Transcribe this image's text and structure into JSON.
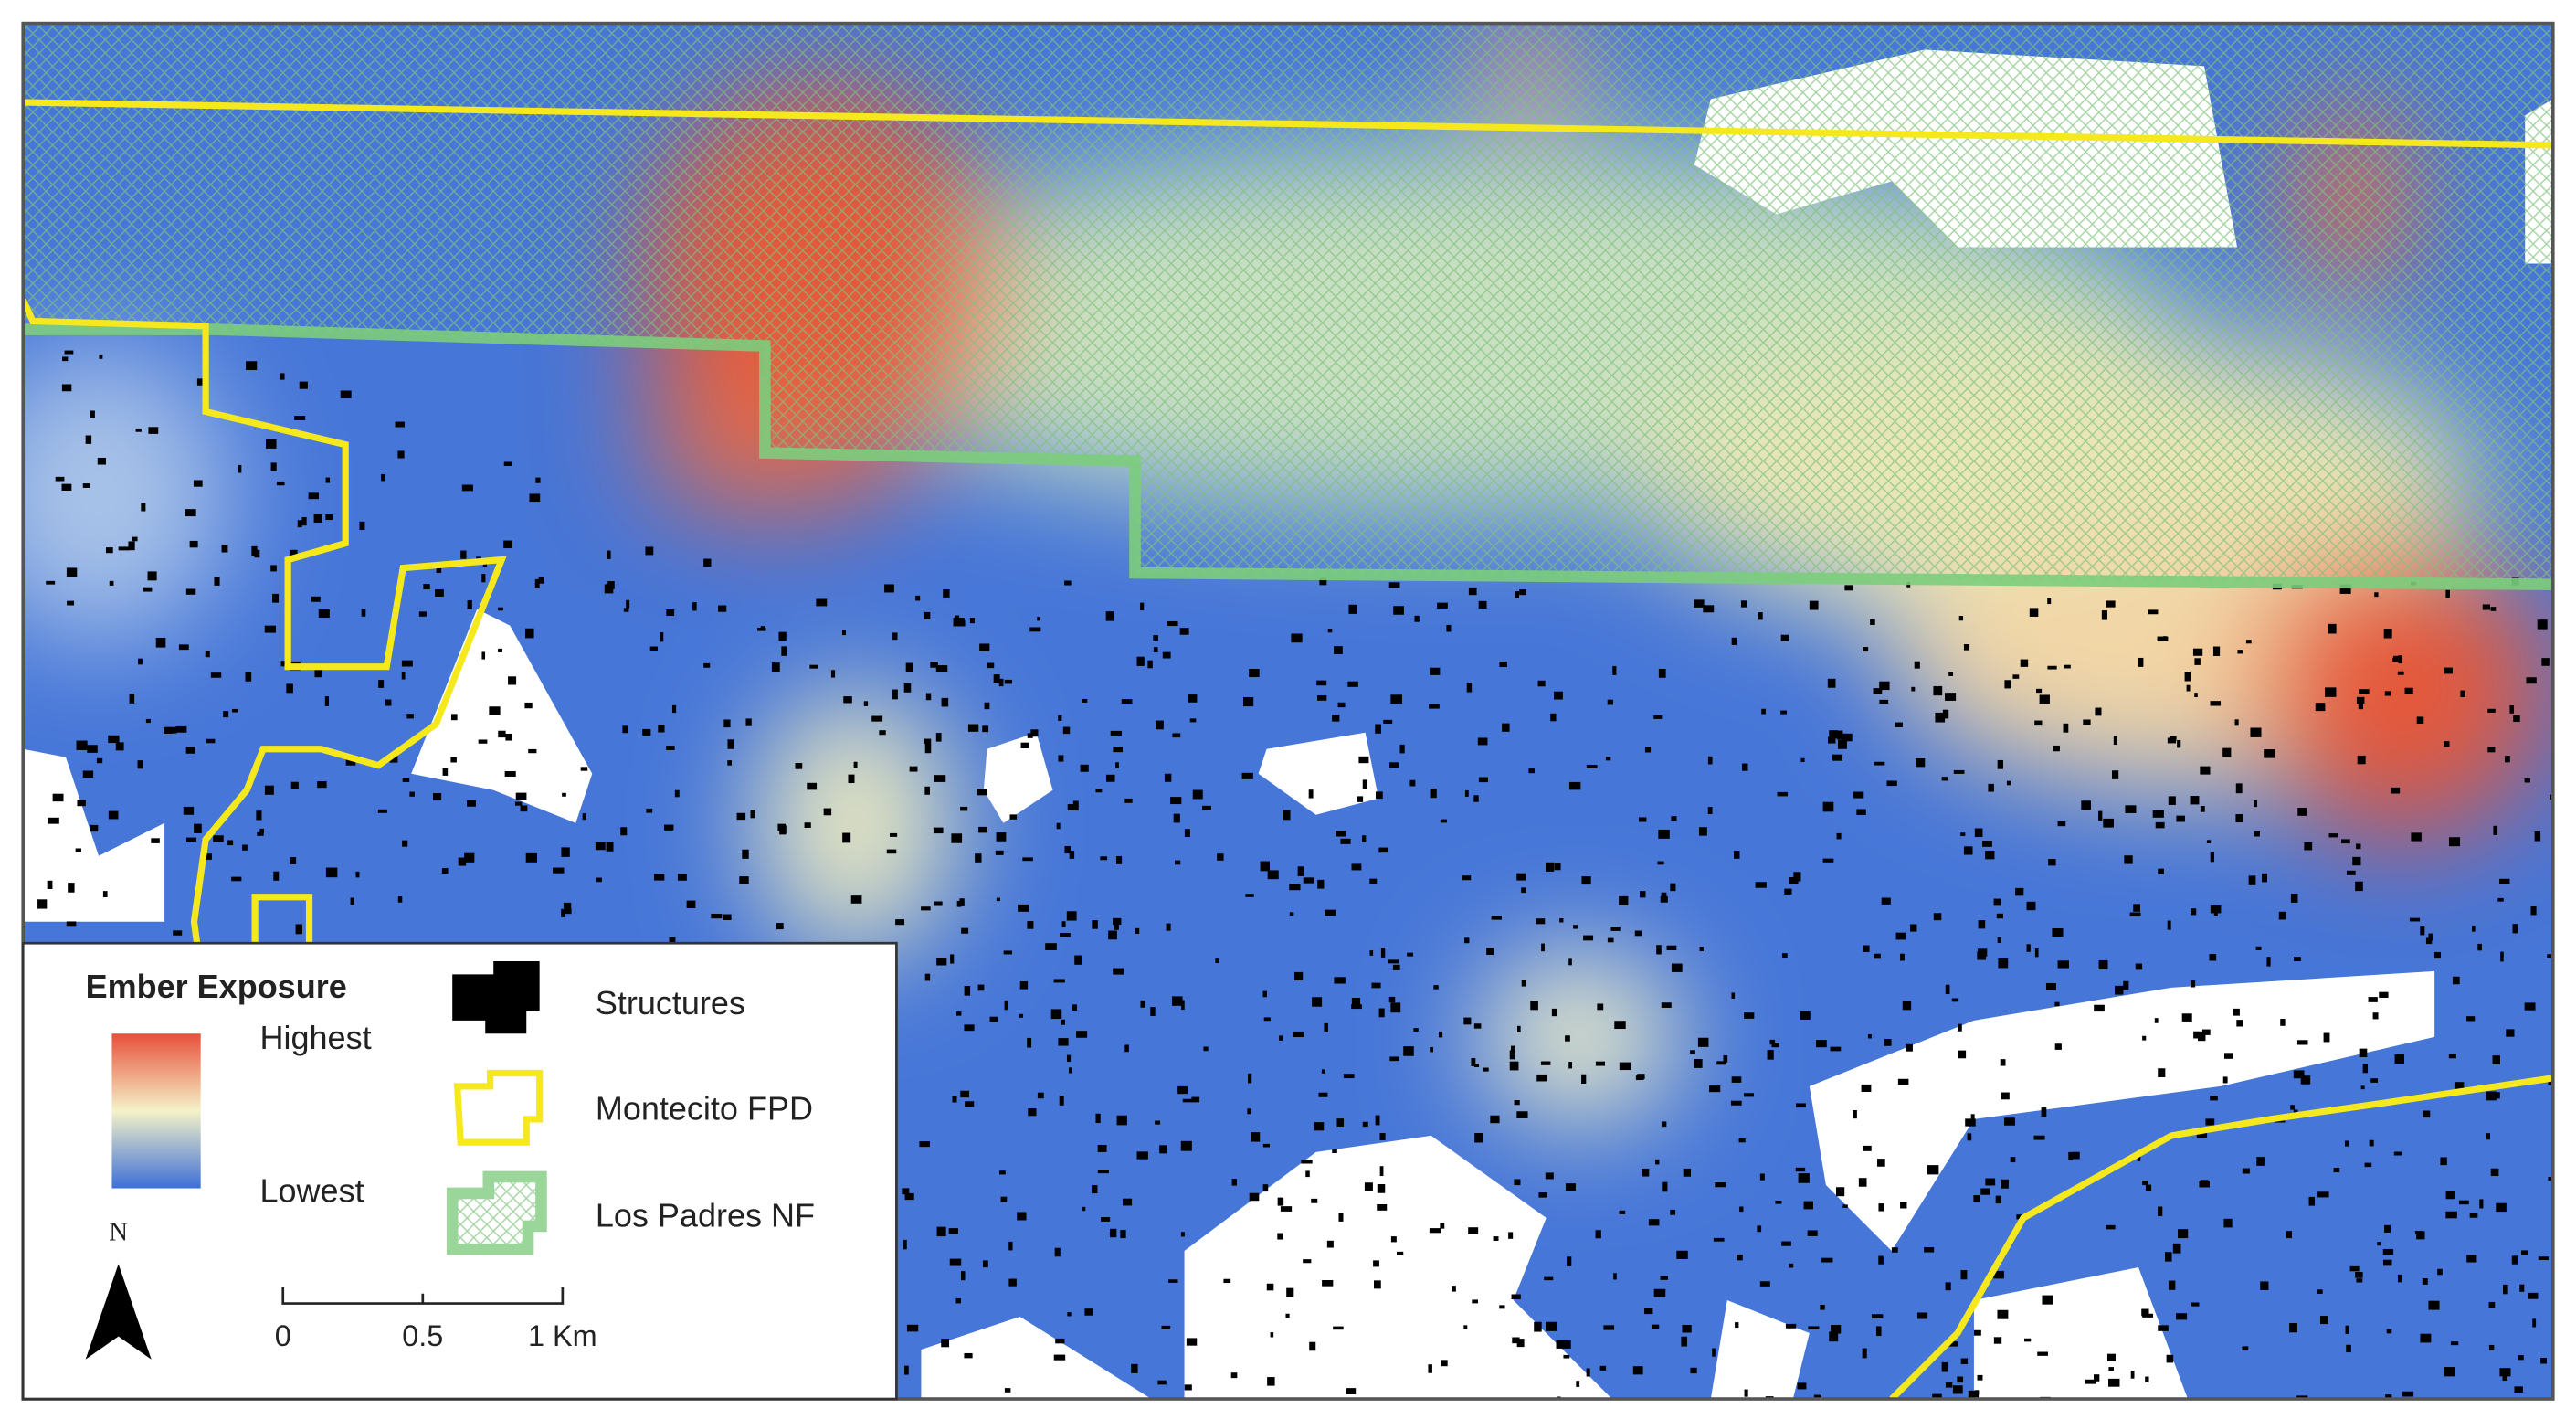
{
  "legend": {
    "title": "Ember Exposure",
    "high": "Highest",
    "low": "Lowest",
    "items": [
      "Structures",
      "Montecito FPD",
      "Los Padres NF"
    ]
  },
  "north": "N",
  "scale": [
    "0",
    "0.5",
    "1 Km"
  ]
}
